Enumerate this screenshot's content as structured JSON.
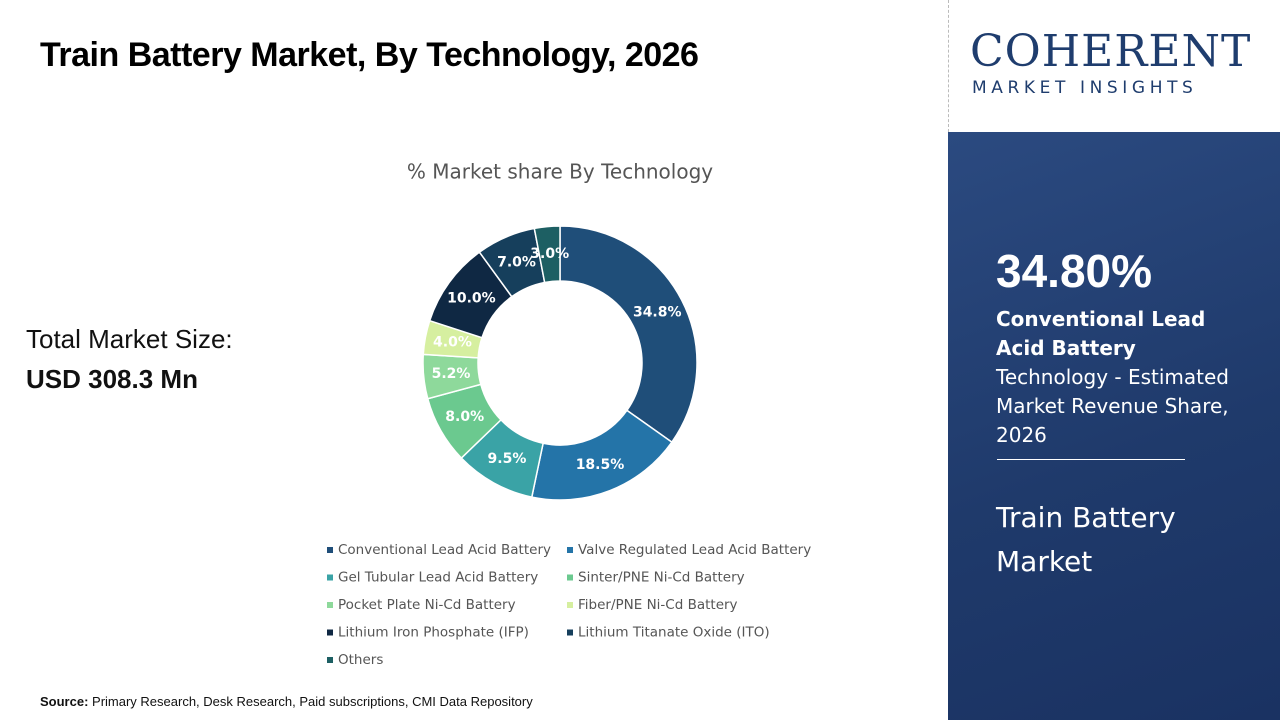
{
  "header": {
    "title": "Train Battery Market, By Technology, 2026"
  },
  "total": {
    "label": "Total Market Size:",
    "value": "USD 308.3 Mn"
  },
  "source": {
    "label": "Source:",
    "text": "Primary Research, Desk Research, Paid subscriptions, CMI Data Repository"
  },
  "logo": {
    "name": "COHERENT",
    "tagline": "MARKET INSIGHTS"
  },
  "highlight": {
    "value": "34.80%",
    "bold": "Conventional Lead Acid Battery",
    "text": "Technology - Estimated Market Revenue Share, 2026"
  },
  "market_name": "Train Battery Market",
  "chart_data": {
    "type": "pie",
    "donut": true,
    "title": "% Market share By Technology",
    "categories": [
      "Conventional Lead Acid Battery",
      "Valve Regulated Lead Acid Battery",
      "Gel Tubular Lead Acid Battery",
      "Sinter/PNE Ni-Cd Battery",
      "Pocket Plate Ni-Cd Battery",
      "Fiber/PNE Ni-Cd Battery",
      "Lithium Iron Phosphate (IFP)",
      "Lithium Titanate Oxide (ITO)",
      "Others"
    ],
    "values": [
      34.8,
      18.5,
      9.5,
      8.0,
      5.2,
      4.0,
      10.0,
      7.0,
      3.0
    ],
    "value_labels": [
      "34.8%",
      "18.5%",
      "9.5%",
      "8.0%",
      "5.2%",
      "4.0%",
      "10.0%",
      "7.0%",
      "3.0%"
    ],
    "colors": [
      "#1f4e79",
      "#2474a8",
      "#3aa3a6",
      "#6bc98f",
      "#8ed99b",
      "#d6efa0",
      "#0f2843",
      "#163f5c",
      "#1d5f63"
    ]
  }
}
